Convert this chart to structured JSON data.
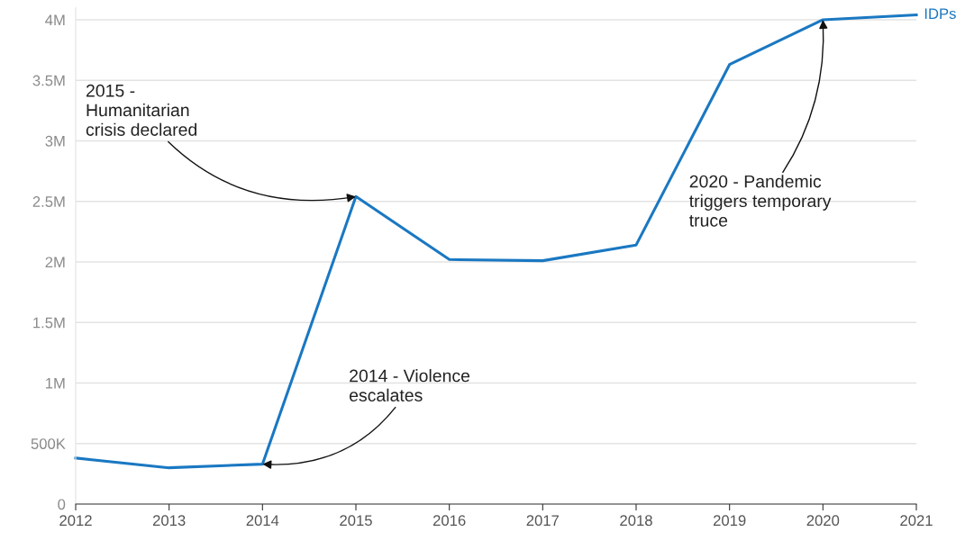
{
  "chart_data": {
    "type": "line",
    "x": [
      2012,
      2013,
      2014,
      2015,
      2016,
      2017,
      2018,
      2019,
      2020,
      2021
    ],
    "series": [
      {
        "name": "IDPs",
        "color": "#1a78c2",
        "values": [
          380000,
          300000,
          330000,
          2540000,
          2020000,
          2010000,
          2140000,
          3630000,
          4000000,
          4040000
        ]
      }
    ],
    "xlim": [
      2012,
      2021
    ],
    "xticks": [
      2012,
      2013,
      2014,
      2015,
      2016,
      2017,
      2018,
      2019,
      2020,
      2021
    ],
    "ylim": [
      0,
      4100000
    ],
    "yticks": [
      {
        "value": 0,
        "label": "0"
      },
      {
        "value": 500000,
        "label": "500K"
      },
      {
        "value": 1000000,
        "label": "1M"
      },
      {
        "value": 1500000,
        "label": "1.5M"
      },
      {
        "value": 2000000,
        "label": "2M"
      },
      {
        "value": 2500000,
        "label": "2.5M"
      },
      {
        "value": 3000000,
        "label": "3M"
      },
      {
        "value": 3500000,
        "label": "3.5M"
      },
      {
        "value": 4000000,
        "label": "4M"
      }
    ],
    "grid": "y",
    "annotations": [
      {
        "text": "2014 - Violence\nescalates",
        "x": 2014,
        "y": 330000
      },
      {
        "text": "2015 -\nHumanitarian\ncrisis declared",
        "x": 2015,
        "y": 2540000
      },
      {
        "text": "2020 - Pandemic\ntriggers temporary\ntruce",
        "x": 2020,
        "y": 4000000
      }
    ]
  }
}
